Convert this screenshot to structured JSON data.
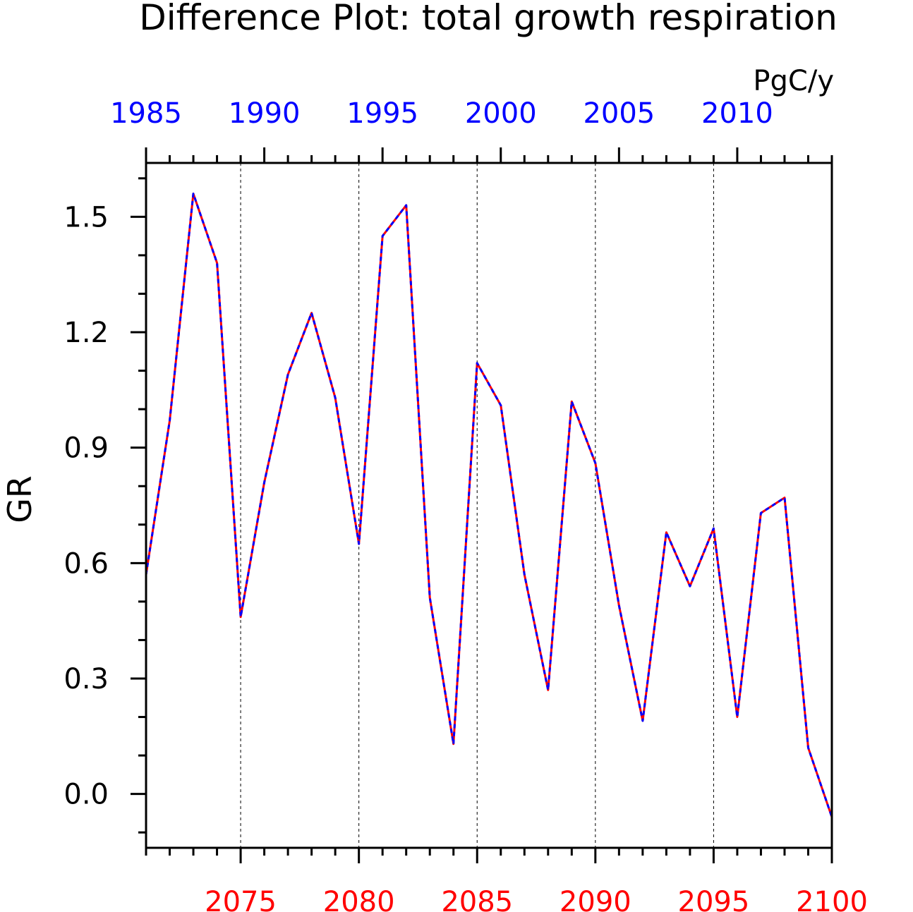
{
  "chart_data": {
    "type": "line",
    "title": "Difference Plot: total growth respiration",
    "units": "PgC/y",
    "ylabel": "GR",
    "ylim": [
      -0.14,
      1.64
    ],
    "yticks": [
      0.0,
      0.3,
      0.6,
      0.9,
      1.2,
      1.5
    ],
    "ytick_labels": [
      "0.0",
      "0.3",
      "0.6",
      "0.9",
      "1.2",
      "1.5"
    ],
    "x_bottom": {
      "range": [
        2071,
        2100
      ],
      "ticks": [
        2075,
        2080,
        2085,
        2090,
        2095,
        2100
      ],
      "tick_labels": [
        "2075",
        "2080",
        "2085",
        "2090",
        "2095",
        "2100"
      ],
      "color": "#ff0000"
    },
    "x_top": {
      "range": [
        1985,
        2014
      ],
      "ticks": [
        1985,
        1990,
        1995,
        2000,
        2005,
        2010
      ],
      "tick_labels": [
        "1985",
        "1990",
        "1995",
        "2000",
        "2005",
        "2010"
      ],
      "color": "#0000ff"
    },
    "grid": "vertical dashed at bottom-axis major ticks",
    "x": [
      2071,
      2072,
      2073,
      2074,
      2075,
      2076,
      2077,
      2078,
      2079,
      2080,
      2081,
      2082,
      2083,
      2084,
      2085,
      2086,
      2087,
      2088,
      2089,
      2090,
      2091,
      2092,
      2093,
      2094,
      2095,
      2096,
      2097,
      2098,
      2099,
      2100
    ],
    "series": [
      {
        "line_color": "#ff0000",
        "line_style": "solid",
        "values": [
          0.57,
          0.97,
          1.56,
          1.38,
          0.46,
          0.81,
          1.09,
          1.25,
          1.03,
          0.65,
          1.45,
          1.53,
          0.51,
          0.13,
          1.12,
          1.01,
          0.57,
          0.27,
          1.02,
          0.86,
          0.49,
          0.19,
          0.68,
          0.54,
          0.69,
          0.2,
          0.73,
          0.77,
          0.12,
          -0.06
        ]
      },
      {
        "line_color": "#0000ff",
        "line_style": "dashed",
        "values": [
          0.57,
          0.97,
          1.56,
          1.38,
          0.46,
          0.81,
          1.09,
          1.25,
          1.03,
          0.65,
          1.45,
          1.53,
          0.51,
          0.13,
          1.12,
          1.01,
          0.57,
          0.27,
          1.02,
          0.86,
          0.49,
          0.19,
          0.68,
          0.54,
          0.69,
          0.2,
          0.73,
          0.77,
          0.12,
          -0.06
        ]
      }
    ]
  }
}
